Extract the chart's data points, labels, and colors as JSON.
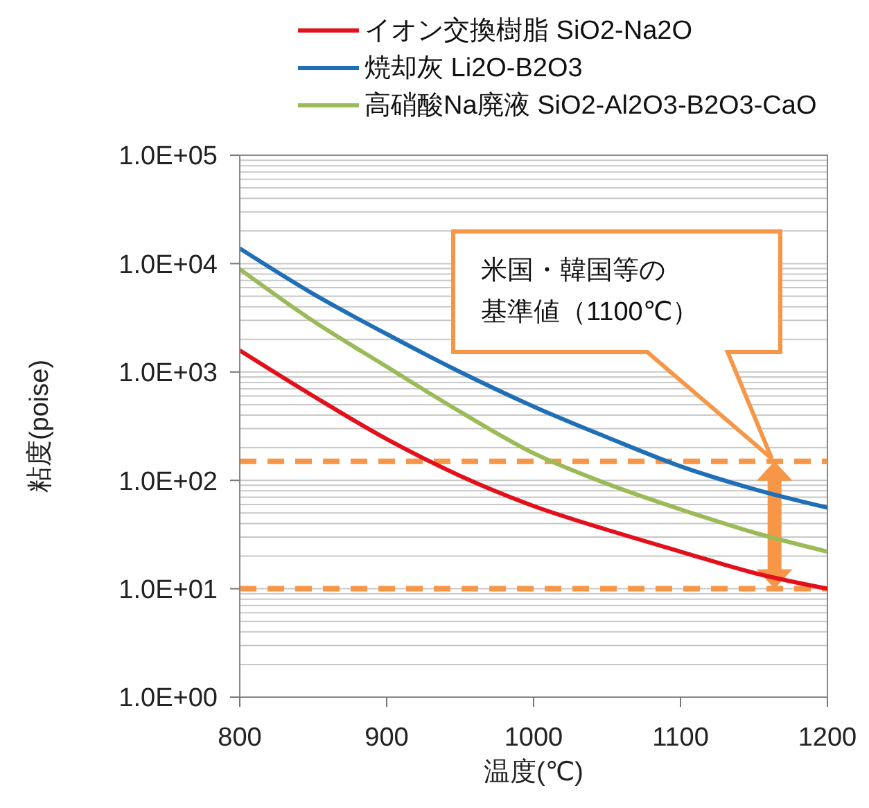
{
  "chart_data": {
    "type": "line",
    "xlabel": "温度(℃)",
    "ylabel": "粘度(poise)",
    "x": [
      800,
      850,
      900,
      950,
      1000,
      1050,
      1100,
      1150,
      1200
    ],
    "series": [
      {
        "name": "イオン交換樹脂 SiO2-Na2O",
        "color": "#e3101b",
        "values": [
          1580,
          600,
          240,
          110,
          58,
          35,
          22,
          14,
          10
        ]
      },
      {
        "name": "焼却灰 Li2O-B2O3",
        "color": "#1f6fb8",
        "values": [
          13800,
          5250,
          2240,
          1000,
          480,
          250,
          135,
          83,
          56
        ]
      },
      {
        "name": "高硝酸Na廃液 SiO2-Al2O3-B2O3-CaO",
        "color": "#9bbb59",
        "values": [
          8900,
          2950,
          1120,
          430,
          178,
          93,
          54,
          33,
          22
        ]
      }
    ],
    "log": "y",
    "xlim": [
      800,
      1200
    ],
    "xticks": [
      800,
      900,
      1000,
      1100,
      1200
    ],
    "ylim": [
      1,
      100000
    ],
    "yticks": [
      {
        "value": 1,
        "label": "1.0E+00"
      },
      {
        "value": 2,
        "label": null
      },
      {
        "value": 3,
        "label": null
      },
      {
        "value": 4,
        "label": null
      },
      {
        "value": 5,
        "label": null
      },
      {
        "value": 6,
        "label": null
      },
      {
        "value": 7,
        "label": null
      },
      {
        "value": 8,
        "label": null
      },
      {
        "value": 9,
        "label": null
      },
      {
        "value": 10,
        "label": "1.0E+01"
      },
      {
        "value": 20,
        "label": null
      },
      {
        "value": 30,
        "label": null
      },
      {
        "value": 40,
        "label": null
      },
      {
        "value": 50,
        "label": null
      },
      {
        "value": 60,
        "label": null
      },
      {
        "value": 70,
        "label": null
      },
      {
        "value": 80,
        "label": null
      },
      {
        "value": 90,
        "label": null
      },
      {
        "value": 100,
        "label": "1.0E+02"
      },
      {
        "value": 200,
        "label": null
      },
      {
        "value": 300,
        "label": null
      },
      {
        "value": 400,
        "label": null
      },
      {
        "value": 500,
        "label": null
      },
      {
        "value": 600,
        "label": null
      },
      {
        "value": 700,
        "label": null
      },
      {
        "value": 800,
        "label": null
      },
      {
        "value": 900,
        "label": null
      },
      {
        "value": 1000,
        "label": "1.0E+03"
      },
      {
        "value": 2000,
        "label": null
      },
      {
        "value": 3000,
        "label": null
      },
      {
        "value": 4000,
        "label": null
      },
      {
        "value": 5000,
        "label": null
      },
      {
        "value": 6000,
        "label": null
      },
      {
        "value": 7000,
        "label": null
      },
      {
        "value": 8000,
        "label": null
      },
      {
        "value": 9000,
        "label": null
      },
      {
        "value": 10000,
        "label": "1.0E+04"
      },
      {
        "value": 20000,
        "label": null
      },
      {
        "value": 30000,
        "label": null
      },
      {
        "value": 40000,
        "label": null
      },
      {
        "value": 50000,
        "label": null
      },
      {
        "value": 60000,
        "label": null
      },
      {
        "value": 70000,
        "label": null
      },
      {
        "value": 80000,
        "label": null
      },
      {
        "value": 90000,
        "label": null
      },
      {
        "value": 100000,
        "label": "1.0E+05"
      }
    ],
    "grid": "y",
    "legend": "top left",
    "marker": "none",
    "line_style": "solid",
    "ref_lines": [
      {
        "axis": "y",
        "value": 150,
        "color": "#f79646",
        "line_style": "dashed"
      },
      {
        "axis": "y",
        "value": 10,
        "color": "#f79646",
        "line_style": "dashed"
      }
    ],
    "annotations": [
      "米国・韓国等の基準値（1100℃）"
    ]
  }
}
